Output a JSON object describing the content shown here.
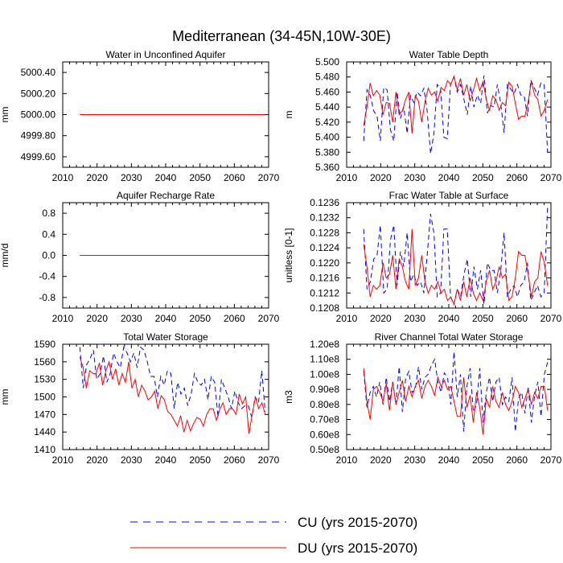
{
  "figure": {
    "title": "Mediterranean (34-45N,10W-30E)"
  },
  "colors": {
    "cu": "#0000ff",
    "du": "#ff0000",
    "axis": "#000000"
  },
  "legend": {
    "items": [
      {
        "label": "CU (yrs 2015-2070)",
        "color": "#0000ff",
        "style": "dashed"
      },
      {
        "label": "DU (yrs 2015-2070)",
        "color": "#ff0000",
        "style": "solid"
      }
    ]
  },
  "chart_data": [
    {
      "id": "water-unconfined",
      "type": "line",
      "title": "Water in Unconfined Aquifer",
      "ylabel": "mm",
      "xlim": [
        2010,
        2070
      ],
      "ylim": [
        4999.5,
        5000.5
      ],
      "xticks": [
        "2010",
        "2020",
        "2030",
        "2040",
        "2050",
        "2060",
        "2070"
      ],
      "yticks": [
        {
          "v": 4999.6,
          "label": "4999.60"
        },
        {
          "v": 4999.8,
          "label": "4999.80"
        },
        {
          "v": 5000.0,
          "label": "5000.00"
        },
        {
          "v": 5000.2,
          "label": "5000.20"
        },
        {
          "v": 5000.4,
          "label": "5000.40"
        }
      ],
      "series": [
        {
          "name": "CU",
          "flat": 5000.0
        },
        {
          "name": "DU",
          "flat": 5000.0
        }
      ]
    },
    {
      "id": "water-table-depth",
      "type": "line",
      "title": "Water Table Depth",
      "ylabel": "m",
      "xlim": [
        2010,
        2070
      ],
      "ylim": [
        5.36,
        5.5
      ],
      "xticks": [
        "2010",
        "2020",
        "2030",
        "2040",
        "2050",
        "2060",
        "2070"
      ],
      "yticks": [
        {
          "v": 5.36,
          "label": "5.360"
        },
        {
          "v": 5.38,
          "label": "5.380"
        },
        {
          "v": 5.4,
          "label": "5.400"
        },
        {
          "v": 5.42,
          "label": "5.420"
        },
        {
          "v": 5.44,
          "label": "5.440"
        },
        {
          "v": 5.46,
          "label": "5.460"
        },
        {
          "v": 5.48,
          "label": "5.480"
        },
        {
          "v": 5.5,
          "label": "5.500"
        }
      ],
      "series": [
        {
          "name": "CU",
          "values": [
            5.395,
            5.463,
            5.455,
            5.435,
            5.428,
            5.395,
            5.466,
            5.463,
            5.41,
            5.395,
            5.46,
            5.425,
            5.44,
            5.405,
            5.455,
            5.446,
            5.46,
            5.455,
            5.465,
            5.435,
            5.378,
            5.405,
            5.47,
            5.465,
            5.4,
            5.398,
            5.47,
            5.48,
            5.46,
            5.47,
            5.45,
            5.43,
            5.468,
            5.44,
            5.456,
            5.445,
            5.482,
            5.432,
            5.442,
            5.44,
            5.47,
            5.445,
            5.406,
            5.47,
            5.464,
            5.458,
            5.47,
            5.456,
            5.455,
            5.428,
            5.476,
            5.466,
            5.456,
            5.472,
            5.47,
            5.38
          ]
        },
        {
          "name": "DU",
          "values": [
            5.415,
            5.44,
            5.472,
            5.455,
            5.462,
            5.456,
            5.43,
            5.446,
            5.445,
            5.42,
            5.46,
            5.43,
            5.435,
            5.45,
            5.46,
            5.405,
            5.455,
            5.448,
            5.42,
            5.447,
            5.465,
            5.456,
            5.46,
            5.448,
            5.466,
            5.462,
            5.475,
            5.47,
            5.481,
            5.463,
            5.478,
            5.456,
            5.47,
            5.448,
            5.462,
            5.478,
            5.462,
            5.474,
            5.45,
            5.436,
            5.455,
            5.45,
            5.436,
            5.446,
            5.442,
            5.473,
            5.468,
            5.445,
            5.424,
            5.428,
            5.428,
            5.447,
            5.474,
            5.456,
            5.45,
            5.428,
            5.436,
            5.45
          ]
        }
      ]
    },
    {
      "id": "aquifer-recharge",
      "type": "line",
      "title": "Aquifer Recharge Rate",
      "ylabel": "mm/d",
      "xlim": [
        2010,
        2070
      ],
      "ylim": [
        -1.0,
        1.0
      ],
      "xticks": [
        "2010",
        "2020",
        "2030",
        "2040",
        "2050",
        "2060",
        "2070"
      ],
      "yticks": [
        {
          "v": -0.8,
          "label": "-0.8"
        },
        {
          "v": -0.4,
          "label": "-0.4"
        },
        {
          "v": 0.0,
          "label": "0.0"
        },
        {
          "v": 0.4,
          "label": "0.4"
        },
        {
          "v": 0.8,
          "label": "0.8"
        }
      ],
      "series": [
        {
          "name": "CU",
          "flat": 0.0
        },
        {
          "name": "DU",
          "flat": 0.0
        }
      ]
    },
    {
      "id": "frac-water-table",
      "type": "line",
      "title": "Frac Water Table at Surface",
      "ylabel": "unitless [0-1]",
      "xlim": [
        2010,
        2070
      ],
      "ylim": [
        0.1208,
        0.1236
      ],
      "xticks": [
        "2010",
        "2020",
        "2030",
        "2040",
        "2050",
        "2060",
        "2070"
      ],
      "yticks": [
        {
          "v": 0.1208,
          "label": "0.1208"
        },
        {
          "v": 0.1212,
          "label": "0.1212"
        },
        {
          "v": 0.1216,
          "label": "0.1216"
        },
        {
          "v": 0.122,
          "label": "0.1220"
        },
        {
          "v": 0.1224,
          "label": "0.1224"
        },
        {
          "v": 0.1228,
          "label": "0.1228"
        },
        {
          "v": 0.1232,
          "label": "0.1232"
        },
        {
          "v": 0.1236,
          "label": "0.1236"
        }
      ],
      "series": [
        {
          "name": "CU",
          "values": [
            0.1229,
            0.1213,
            0.1215,
            0.1221,
            0.1222,
            0.123,
            0.1212,
            0.1213,
            0.1226,
            0.123,
            0.1214,
            0.1223,
            0.1219,
            0.1228,
            0.1215,
            0.1217,
            0.1214,
            0.1215,
            0.1212,
            0.1222,
            0.1233,
            0.1228,
            0.1211,
            0.1212,
            0.1229,
            0.1229,
            0.1211,
            0.1209,
            0.1213,
            0.1211,
            0.1217,
            0.1221,
            0.1211,
            0.1219,
            0.1213,
            0.1218,
            0.1209,
            0.122,
            0.1218,
            0.1218,
            0.1212,
            0.1218,
            0.1228,
            0.1211,
            0.1213,
            0.1214,
            0.1211,
            0.1214,
            0.1215,
            0.122,
            0.121,
            0.1212,
            0.1214,
            0.1211,
            0.1212,
            0.1235
          ]
        },
        {
          "name": "DU",
          "values": [
            0.1225,
            0.1219,
            0.1211,
            0.1214,
            0.1213,
            0.1214,
            0.122,
            0.1216,
            0.1217,
            0.1222,
            0.1213,
            0.1221,
            0.1219,
            0.1215,
            0.1213,
            0.1229,
            0.1214,
            0.1216,
            0.1222,
            0.1215,
            0.1212,
            0.1214,
            0.1213,
            0.1215,
            0.1212,
            0.1213,
            0.121,
            0.1211,
            0.1209,
            0.1213,
            0.121,
            0.1215,
            0.1211,
            0.1216,
            0.1212,
            0.121,
            0.1212,
            0.121,
            0.1215,
            0.1218,
            0.1213,
            0.1215,
            0.1219,
            0.1216,
            0.1217,
            0.121,
            0.1211,
            0.1216,
            0.1223,
            0.1222,
            0.1222,
            0.1217,
            0.1211,
            0.1215,
            0.1216,
            0.1223,
            0.122,
            0.1214
          ]
        }
      ]
    },
    {
      "id": "total-water-storage",
      "type": "line",
      "title": "Total Water Storage",
      "ylabel": "mm",
      "xlim": [
        2010,
        2070
      ],
      "ylim": [
        1410,
        1590
      ],
      "xticks": [
        "2010",
        "2020",
        "2030",
        "2040",
        "2050",
        "2060",
        "2070"
      ],
      "yticks": [
        {
          "v": 1410,
          "label": "1410"
        },
        {
          "v": 1440,
          "label": "1440"
        },
        {
          "v": 1470,
          "label": "1470"
        },
        {
          "v": 1500,
          "label": "1500"
        },
        {
          "v": 1530,
          "label": "1530"
        },
        {
          "v": 1560,
          "label": "1560"
        },
        {
          "v": 1590,
          "label": "1590"
        }
      ],
      "series": [
        {
          "name": "CU",
          "values": [
            1585,
            1515,
            1555,
            1565,
            1580,
            1530,
            1540,
            1570,
            1525,
            1540,
            1575,
            1560,
            1550,
            1585,
            1575,
            1560,
            1575,
            1550,
            1585,
            1580,
            1560,
            1535,
            1535,
            1500,
            1535,
            1520,
            1545,
            1540,
            1480,
            1525,
            1505,
            1515,
            1485,
            1505,
            1540,
            1525,
            1520,
            1530,
            1495,
            1535,
            1525,
            1465,
            1530,
            1515,
            1500,
            1480,
            1510,
            1490,
            1480,
            1485,
            1485,
            1465,
            1500,
            1490,
            1545,
            1475
          ]
        },
        {
          "name": "DU",
          "values": [
            1568,
            1550,
            1515,
            1545,
            1540,
            1540,
            1558,
            1520,
            1545,
            1560,
            1530,
            1548,
            1520,
            1540,
            1525,
            1560,
            1515,
            1530,
            1500,
            1520,
            1510,
            1495,
            1500,
            1510,
            1480,
            1502,
            1495,
            1475,
            1470,
            1460,
            1450,
            1468,
            1440,
            1460,
            1442,
            1455,
            1465,
            1462,
            1450,
            1470,
            1480,
            1480,
            1460,
            1478,
            1490,
            1470,
            1480,
            1480,
            1470,
            1505,
            1488,
            1500,
            1437,
            1470,
            1500,
            1480,
            1490,
            1470
          ]
        }
      ]
    },
    {
      "id": "river-channel-storage",
      "type": "line",
      "title": "River Channel Total Water Storage",
      "ylabel": "m3",
      "xlim": [
        2010,
        2070
      ],
      "ylim": [
        50000000,
        120000000
      ],
      "xticks": [
        "2010",
        "2020",
        "2030",
        "2040",
        "2050",
        "2060",
        "2070"
      ],
      "yticks": [
        {
          "v": 50000000,
          "label": "0.50e8"
        },
        {
          "v": 60000000,
          "label": "0.60e8"
        },
        {
          "v": 70000000,
          "label": "0.70e8"
        },
        {
          "v": 80000000,
          "label": "0.80e8"
        },
        {
          "v": 90000000,
          "label": "0.90e8"
        },
        {
          "v": 100000000,
          "label": "1.00e8"
        },
        {
          "v": 110000000,
          "label": "1.10e8"
        },
        {
          "v": 120000000,
          "label": "1.20e8"
        }
      ],
      "series": [
        {
          "name": "CU",
          "values": [
            102000000,
            78000000,
            88000000,
            92000000,
            85000000,
            95000000,
            80000000,
            98000000,
            82000000,
            95000000,
            80000000,
            105000000,
            75000000,
            97000000,
            102000000,
            88000000,
            90000000,
            105000000,
            90000000,
            98000000,
            100000000,
            106000000,
            110000000,
            95000000,
            88000000,
            101000000,
            98000000,
            80000000,
            115000000,
            85000000,
            100000000,
            62000000,
            92000000,
            104000000,
            75000000,
            80000000,
            104000000,
            68000000,
            88000000,
            98000000,
            82000000,
            95000000,
            98000000,
            80000000,
            85000000,
            82000000,
            98000000,
            62000000,
            84000000,
            88000000,
            74000000,
            92000000,
            68000000,
            86000000,
            95000000,
            72000000,
            100000000,
            108000000
          ]
        },
        {
          "name": "DU",
          "values": [
            104000000,
            82000000,
            70000000,
            90000000,
            92000000,
            88000000,
            82000000,
            94000000,
            76000000,
            95000000,
            80000000,
            88000000,
            96000000,
            82000000,
            92000000,
            85000000,
            92000000,
            96000000,
            84000000,
            92000000,
            96000000,
            92000000,
            86000000,
            98000000,
            92000000,
            96000000,
            90000000,
            92000000,
            82000000,
            72000000,
            72000000,
            98000000,
            78000000,
            86000000,
            68000000,
            88000000,
            78000000,
            60000000,
            84000000,
            78000000,
            92000000,
            82000000,
            78000000,
            88000000,
            80000000,
            76000000,
            82000000,
            92000000,
            88000000,
            78000000,
            84000000,
            90000000,
            80000000,
            88000000,
            84000000,
            92000000,
            92000000,
            76000000
          ]
        }
      ]
    }
  ]
}
